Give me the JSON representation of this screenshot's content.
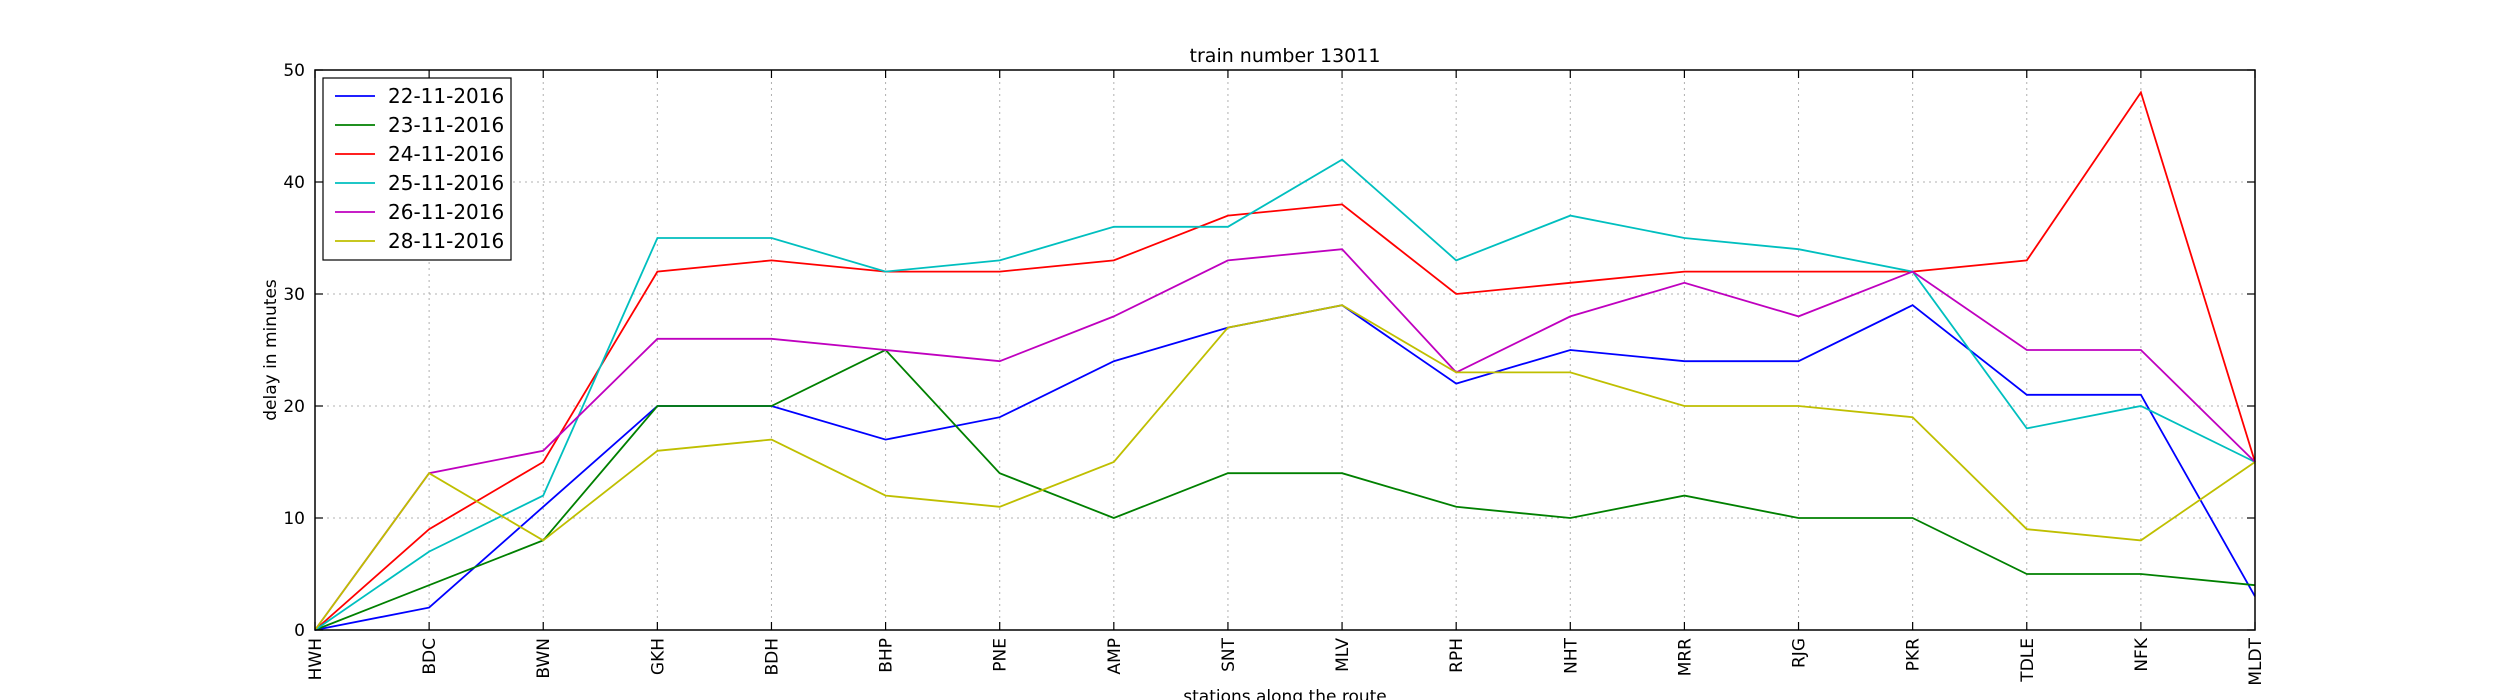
{
  "chart_data": {
    "type": "line",
    "title": "train number 13011",
    "xlabel": "stations along the route",
    "ylabel": "delay in minutes",
    "categories": [
      "HWH",
      "BDC",
      "BWN",
      "GKH",
      "BDH",
      "BHP",
      "PNE",
      "AMP",
      "SNT",
      "MLV",
      "RPH",
      "NHT",
      "MRR",
      "RJG",
      "PKR",
      "TDLE",
      "NFK",
      "MLDT"
    ],
    "ylim": [
      0,
      50
    ],
    "yticks": [
      0,
      10,
      20,
      30,
      40,
      50
    ],
    "grid": true,
    "legend_position": "top-left",
    "series": [
      {
        "name": "22-11-2016",
        "color": "#0000ff",
        "values": [
          0,
          2,
          11,
          20,
          20,
          17,
          19,
          24,
          27,
          29,
          22,
          25,
          24,
          24,
          29,
          21,
          21,
          3
        ]
      },
      {
        "name": "23-11-2016",
        "color": "#008000",
        "values": [
          0,
          4,
          8,
          20,
          20,
          25,
          14,
          10,
          14,
          14,
          11,
          10,
          12,
          10,
          10,
          5,
          5,
          4
        ]
      },
      {
        "name": "24-11-2016",
        "color": "#ff0000",
        "values": [
          0,
          9,
          15,
          32,
          33,
          32,
          32,
          33,
          37,
          38,
          30,
          31,
          32,
          32,
          32,
          33,
          48,
          15
        ]
      },
      {
        "name": "25-11-2016",
        "color": "#00bfbf",
        "values": [
          0,
          7,
          12,
          35,
          35,
          32,
          33,
          36,
          36,
          42,
          33,
          37,
          35,
          34,
          32,
          18,
          20,
          15
        ]
      },
      {
        "name": "26-11-2016",
        "color": "#bf00bf",
        "values": [
          0,
          14,
          16,
          26,
          26,
          25,
          24,
          28,
          33,
          34,
          23,
          28,
          31,
          28,
          32,
          25,
          25,
          15
        ]
      },
      {
        "name": "28-11-2016",
        "color": "#bfbf00",
        "values": [
          0,
          14,
          8,
          16,
          17,
          12,
          11,
          15,
          27,
          29,
          23,
          23,
          20,
          20,
          19,
          9,
          8,
          15
        ]
      }
    ]
  }
}
